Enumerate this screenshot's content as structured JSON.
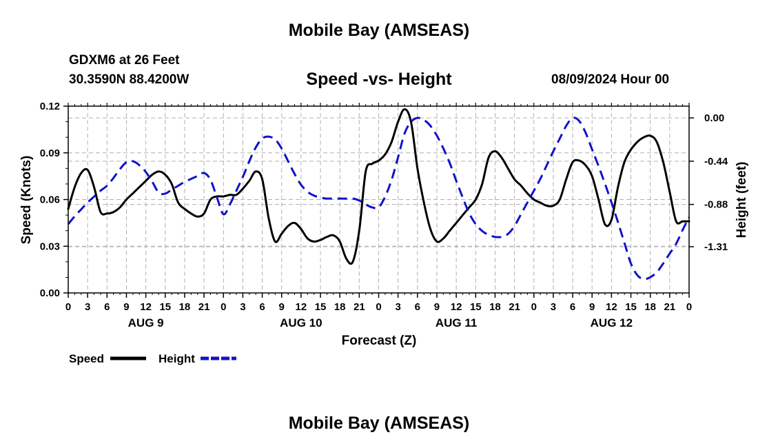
{
  "header": {
    "title": "Mobile Bay (AMSEAS)",
    "station": "GDXM6 at 26 Feet",
    "coordinates": "30.3590N  88.4200W",
    "chart_title": "Speed -vs- Height",
    "datetime": "08/09/2024 Hour 00"
  },
  "footer": {
    "title": "Mobile Bay (AMSEAS)"
  },
  "colors": {
    "speed": "#000000",
    "height": "#1111cc",
    "grid": "#b0b0b0"
  },
  "chart_data": {
    "type": "line",
    "title": "Speed -vs- Height",
    "xlabel": "Forecast (Z)",
    "ylabel": "Speed (Knots)",
    "y2label": "Height (feet)",
    "xlim": [
      0,
      96
    ],
    "ylim": [
      0,
      0.12
    ],
    "y2lim": [
      -1.78,
      0.12
    ],
    "y_ticks": [
      0,
      0.03,
      0.06,
      0.09,
      0.12
    ],
    "y_tick_labels": [
      "0.00",
      "0.03",
      "0.06",
      "0.09",
      "0.12"
    ],
    "y2_ticks": [
      0.0,
      -0.44,
      -0.88,
      -1.31
    ],
    "y2_tick_labels": [
      "0.00",
      "-0.44",
      "-0.88",
      "-1.31"
    ],
    "x_ticks": [
      0,
      3,
      6,
      9,
      12,
      15,
      18,
      21,
      24,
      27,
      30,
      33,
      36,
      39,
      42,
      45,
      48,
      51,
      54,
      57,
      60,
      63,
      66,
      69,
      72,
      75,
      78,
      81,
      84,
      87,
      90,
      93,
      96
    ],
    "x_tick_labels": [
      "0",
      "3",
      "6",
      "9",
      "12",
      "15",
      "18",
      "21",
      "0",
      "3",
      "6",
      "9",
      "12",
      "15",
      "18",
      "21",
      "0",
      "3",
      "6",
      "9",
      "12",
      "15",
      "18",
      "21",
      "0",
      "3",
      "6",
      "9",
      "12",
      "15",
      "18",
      "21",
      "0"
    ],
    "day_labels": [
      {
        "label": "AUG 9",
        "x": 12
      },
      {
        "label": "AUG 10",
        "x": 36
      },
      {
        "label": "AUG 11",
        "x": 60
      },
      {
        "label": "AUG 12",
        "x": 84
      }
    ],
    "legend": [
      "Speed",
      "Height"
    ],
    "series": [
      {
        "name": "Speed",
        "axis": "left",
        "style": "solid",
        "x": [
          0,
          1,
          2,
          3,
          4,
          5,
          6,
          7,
          8,
          9,
          10,
          11,
          12,
          13,
          14,
          15,
          16,
          17,
          18,
          19,
          20,
          21,
          22,
          23,
          24,
          25,
          26,
          27,
          28,
          29,
          30,
          31,
          32,
          33,
          34,
          35,
          36,
          37,
          38,
          39,
          40,
          41,
          42,
          43,
          44,
          45,
          46,
          47,
          48,
          49,
          50,
          51,
          52,
          53,
          54,
          55,
          56,
          57,
          58,
          59,
          60,
          61,
          62,
          63,
          64,
          65,
          66,
          67,
          68,
          69,
          70,
          71,
          72,
          73,
          74,
          75,
          76,
          77,
          78,
          79,
          80,
          81,
          82,
          83,
          84,
          85,
          86,
          87,
          88,
          89,
          90,
          91,
          92,
          93,
          94,
          95,
          96
        ],
        "values": [
          0.054,
          0.068,
          0.077,
          0.079,
          0.068,
          0.052,
          0.051,
          0.052,
          0.055,
          0.06,
          0.064,
          0.068,
          0.072,
          0.076,
          0.078,
          0.076,
          0.07,
          0.058,
          0.054,
          0.051,
          0.049,
          0.051,
          0.06,
          0.062,
          0.062,
          0.063,
          0.063,
          0.067,
          0.072,
          0.078,
          0.073,
          0.048,
          0.033,
          0.038,
          0.043,
          0.045,
          0.041,
          0.035,
          0.033,
          0.034,
          0.036,
          0.037,
          0.033,
          0.022,
          0.02,
          0.04,
          0.078,
          0.083,
          0.085,
          0.089,
          0.097,
          0.11,
          0.118,
          0.11,
          0.08,
          0.058,
          0.041,
          0.033,
          0.035,
          0.04,
          0.045,
          0.05,
          0.055,
          0.06,
          0.07,
          0.087,
          0.091,
          0.087,
          0.08,
          0.073,
          0.069,
          0.064,
          0.06,
          0.058,
          0.056,
          0.056,
          0.06,
          0.073,
          0.084,
          0.085,
          0.082,
          0.075,
          0.06,
          0.044,
          0.047,
          0.068,
          0.084,
          0.092,
          0.097,
          0.1,
          0.101,
          0.097,
          0.084,
          0.065,
          0.046,
          0.046,
          0.046
        ]
      },
      {
        "name": "Height",
        "axis": "right",
        "style": "dashed",
        "x": [
          0,
          1,
          2,
          3,
          4,
          5,
          6,
          7,
          8,
          9,
          10,
          11,
          12,
          13,
          14,
          15,
          16,
          17,
          18,
          19,
          20,
          21,
          22,
          23,
          24,
          25,
          26,
          27,
          28,
          29,
          30,
          31,
          32,
          33,
          34,
          35,
          36,
          37,
          38,
          39,
          40,
          41,
          42,
          43,
          44,
          45,
          46,
          47,
          48,
          49,
          50,
          51,
          52,
          53,
          54,
          55,
          56,
          57,
          58,
          59,
          60,
          61,
          62,
          63,
          64,
          65,
          66,
          67,
          68,
          69,
          70,
          71,
          72,
          73,
          74,
          75,
          76,
          77,
          78,
          79,
          80,
          81,
          82,
          83,
          84,
          85,
          86,
          87,
          88,
          89,
          90,
          91,
          92,
          93,
          94,
          95,
          96
        ],
        "values": [
          -1.08,
          -1.0,
          -0.93,
          -0.86,
          -0.8,
          -0.74,
          -0.69,
          -0.61,
          -0.52,
          -0.45,
          -0.44,
          -0.48,
          -0.55,
          -0.65,
          -0.76,
          -0.77,
          -0.73,
          -0.69,
          -0.65,
          -0.62,
          -0.59,
          -0.56,
          -0.63,
          -0.81,
          -0.98,
          -0.88,
          -0.74,
          -0.6,
          -0.44,
          -0.3,
          -0.21,
          -0.19,
          -0.22,
          -0.31,
          -0.44,
          -0.57,
          -0.68,
          -0.75,
          -0.79,
          -0.81,
          -0.82,
          -0.82,
          -0.82,
          -0.82,
          -0.82,
          -0.84,
          -0.88,
          -0.91,
          -0.91,
          -0.8,
          -0.63,
          -0.4,
          -0.16,
          -0.04,
          0.0,
          -0.02,
          -0.08,
          -0.18,
          -0.31,
          -0.46,
          -0.64,
          -0.81,
          -0.97,
          -1.08,
          -1.15,
          -1.19,
          -1.21,
          -1.21,
          -1.18,
          -1.1,
          -0.98,
          -0.86,
          -0.74,
          -0.62,
          -0.48,
          -0.34,
          -0.21,
          -0.08,
          0.0,
          -0.03,
          -0.15,
          -0.32,
          -0.49,
          -0.67,
          -0.86,
          -1.06,
          -1.27,
          -1.48,
          -1.6,
          -1.64,
          -1.62,
          -1.57,
          -1.48,
          -1.38,
          -1.28,
          -1.14,
          -1.01
        ]
      }
    ]
  }
}
